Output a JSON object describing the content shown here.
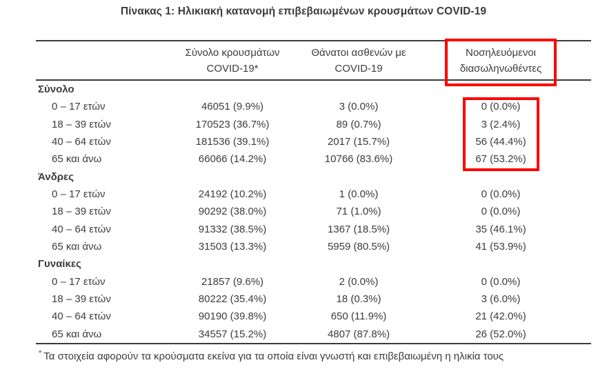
{
  "title": "Πίνακας 1: Ηλικιακή κατανομή επιβεβαιωμένων κρουσμάτων COVID-19",
  "table": {
    "columns": [
      {
        "line1": "Σύνολο κρουσμάτων",
        "line2": "COVID-19*"
      },
      {
        "line1": "Θάνατοι ασθενών με",
        "line2": "COVID-19"
      },
      {
        "line1": "Νοσηλευόμενοι",
        "line2": "διασωληνωθέντες"
      }
    ],
    "groups": [
      {
        "label": "Σύνολο",
        "rows": [
          {
            "age": "0 – 17 ετών",
            "cases": "46051 (9.9%)",
            "deaths": "3 (0.0%)",
            "intubated": "0 (0.0%)"
          },
          {
            "age": "18 – 39 ετών",
            "cases": "170523 (36.7%)",
            "deaths": "89 (0.7%)",
            "intubated": "3 (2.4%)"
          },
          {
            "age": "40 – 64 ετών",
            "cases": "181536 (39.1%)",
            "deaths": "2017 (15.7%)",
            "intubated": "56 (44.4%)"
          },
          {
            "age": "65 και άνω",
            "cases": "66066 (14.2%)",
            "deaths": "10766 (83.6%)",
            "intubated": "67 (53.2%)"
          }
        ]
      },
      {
        "label": "Άνδρες",
        "rows": [
          {
            "age": "0 – 17 ετών",
            "cases": "24192 (10.2%)",
            "deaths": "1 (0.0%)",
            "intubated": "0 (0.0%)"
          },
          {
            "age": "18 – 39 ετών",
            "cases": "90292 (38.0%)",
            "deaths": "71 (1.0%)",
            "intubated": "0 (0.0%)"
          },
          {
            "age": "40 – 64 ετών",
            "cases": "91332 (38.5%)",
            "deaths": "1367 (18.5%)",
            "intubated": "35 (46.1%)"
          },
          {
            "age": "65 και άνω",
            "cases": "31503 (13.3%)",
            "deaths": "5959 (80.5%)",
            "intubated": "41 (53.9%)"
          }
        ]
      },
      {
        "label": "Γυναίκες",
        "rows": [
          {
            "age": "0 – 17 ετών",
            "cases": "21857 (9.6%)",
            "deaths": "2 (0.0%)",
            "intubated": "0 (0.0%)"
          },
          {
            "age": "18 – 39 ετών",
            "cases": "80222 (35.4%)",
            "deaths": "18 (0.3%)",
            "intubated": "3 (6.0%)"
          },
          {
            "age": "40 – 64 ετών",
            "cases": "90190 (39.8%)",
            "deaths": "650 (11.9%)",
            "intubated": "21 (42.0%)"
          },
          {
            "age": "65 και άνω",
            "cases": "34557 (15.2%)",
            "deaths": "4807 (87.8%)",
            "intubated": "26 (52.0%)"
          }
        ]
      }
    ]
  },
  "footnote": {
    "marker": "*",
    "text": "Τα στοιχεία αφορούν τα κρούσματα εκείνα για τα οποία είναι γνωστή και επιβεβαιωμένη η ηλικία τους"
  },
  "highlight_color": "#ff0000"
}
